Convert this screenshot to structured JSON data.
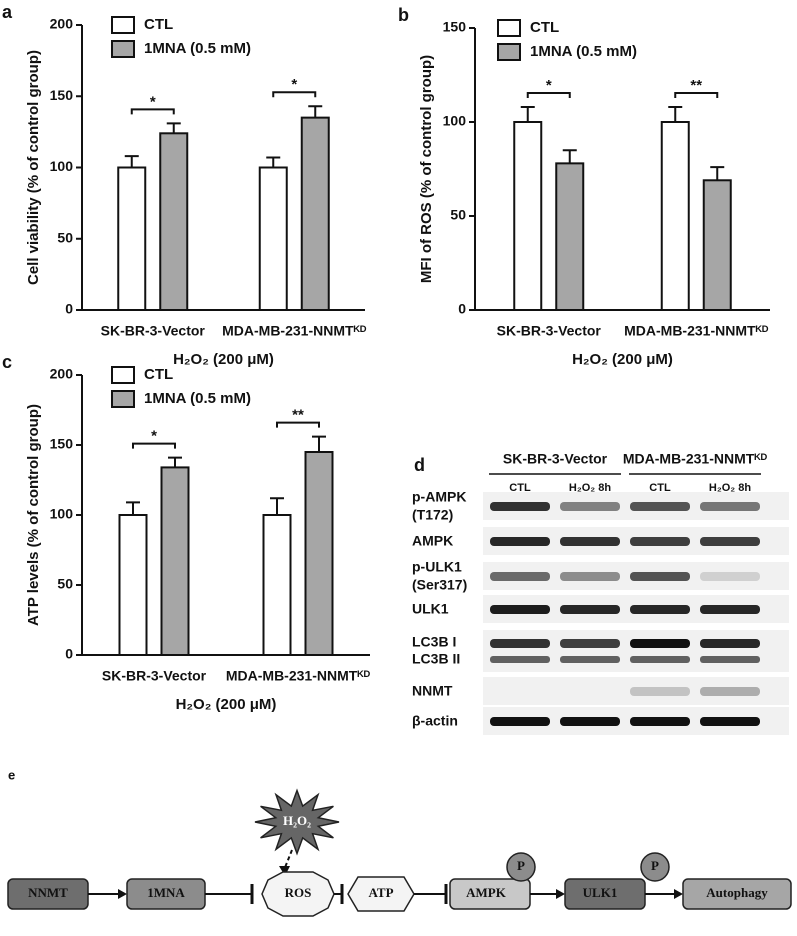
{
  "chart_data": [
    {
      "type": "bar",
      "panel_label": "a",
      "ylabel": "Cell viability  (% of control group)",
      "xlabel": "H₂O₂ (200 μM)",
      "categories": [
        "SK-BR-3-Vector",
        "MDA-MB-231-NNMTᴷᴰ"
      ],
      "series": [
        {
          "name": "CTL",
          "color": "#ffffff",
          "values": [
            100,
            100
          ],
          "errors": [
            8,
            7
          ]
        },
        {
          "name": "1MNA (0.5 mM)",
          "color": "#a6a6a6",
          "values": [
            124,
            135
          ],
          "errors": [
            7,
            8
          ]
        }
      ],
      "annotations": [
        "*",
        "*"
      ],
      "ylim": [
        0,
        200
      ],
      "yticks": [
        0,
        50,
        100,
        150,
        200
      ]
    },
    {
      "type": "bar",
      "panel_label": "b",
      "ylabel": "MFI of ROS  (% of control group)",
      "xlabel": "H₂O₂ (200 μM)",
      "categories": [
        "SK-BR-3-Vector",
        "MDA-MB-231-NNMTᴷᴰ"
      ],
      "series": [
        {
          "name": "CTL",
          "color": "#ffffff",
          "values": [
            100,
            100
          ],
          "errors": [
            8,
            8
          ]
        },
        {
          "name": "1MNA (0.5 mM)",
          "color": "#a6a6a6",
          "values": [
            78,
            69
          ],
          "errors": [
            7,
            7
          ]
        }
      ],
      "annotations": [
        "*",
        "**"
      ],
      "ylim": [
        0,
        150
      ],
      "yticks": [
        0,
        50,
        100,
        150
      ]
    },
    {
      "type": "bar",
      "panel_label": "c",
      "ylabel": "ATP  levels  (% of control group)",
      "xlabel": "H₂O₂ (200 μM)",
      "categories": [
        "SK-BR-3-Vector",
        "MDA-MB-231-NNMTᴷᴰ"
      ],
      "series": [
        {
          "name": "CTL",
          "color": "#ffffff",
          "values": [
            100,
            100
          ],
          "errors": [
            9,
            12
          ]
        },
        {
          "name": "1MNA (0.5 mM)",
          "color": "#a6a6a6",
          "values": [
            134,
            145
          ],
          "errors": [
            7,
            11
          ]
        }
      ],
      "annotations": [
        "*",
        "**"
      ],
      "ylim": [
        0,
        200
      ],
      "yticks": [
        0,
        50,
        100,
        150,
        200
      ]
    }
  ],
  "blot": {
    "panel_label": "d",
    "groups": [
      "SK-BR-3-Vector",
      "MDA-MB-231-NNMTᴷᴰ"
    ],
    "lanes": [
      "CTL",
      "H₂O₂ 8h",
      "CTL",
      "H₂O₂ 8h"
    ],
    "rows": [
      [
        "p-AMPK",
        "(T172)"
      ],
      [
        "AMPK"
      ],
      [
        "p-ULK1",
        "(Ser317)"
      ],
      [
        "ULK1"
      ],
      [
        "LC3B I",
        "LC3B II"
      ],
      [
        "NNMT"
      ],
      [
        "β-actin"
      ]
    ]
  },
  "diagram": {
    "panel_label": "e",
    "nodes": [
      "NNMT",
      "1MNA",
      "ROS",
      "ATP",
      "AMPK",
      "ULK1",
      "Autophagy"
    ],
    "stimulus": "H₂O₂",
    "phospho": [
      "P",
      "P"
    ]
  }
}
